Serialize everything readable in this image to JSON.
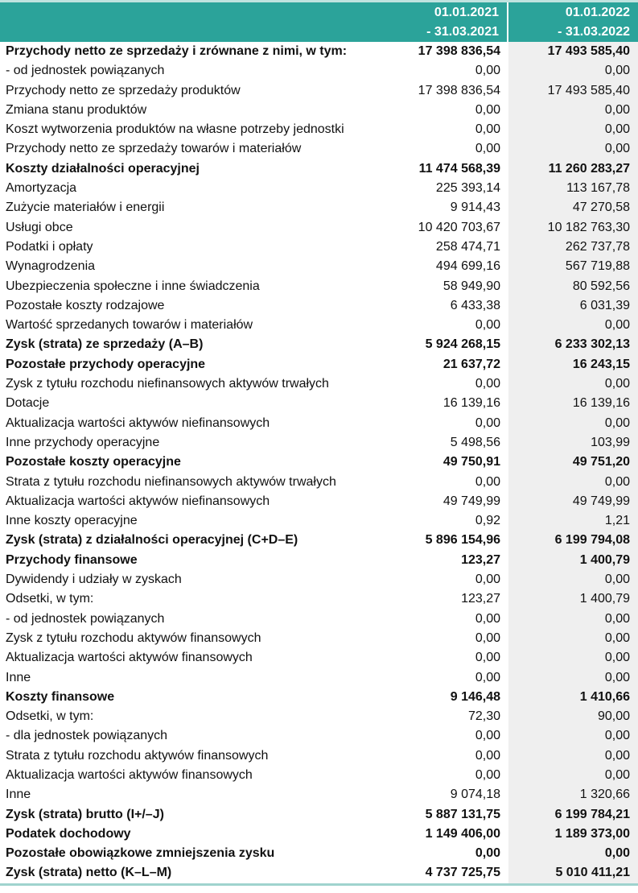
{
  "header": {
    "col1_line1": "01.01.2021",
    "col1_line2": "- 31.03.2021",
    "col2_line1": "01.01.2022",
    "col2_line2": "- 31.03.2022",
    "color": "#2ba39a"
  },
  "rows": [
    {
      "label": "Przychody netto ze sprzedaży i zrównane z nimi, w tym:",
      "v2021": "17 398 836,54",
      "v2022": "17 493 585,40",
      "bold": true
    },
    {
      "label": " - od jednostek powiązanych",
      "v2021": "0,00",
      "v2022": "0,00",
      "bold": false
    },
    {
      "label": "Przychody netto ze sprzedaży produktów",
      "v2021": "17 398 836,54",
      "v2022": "17 493 585,40",
      "bold": false
    },
    {
      "label": "Zmiana stanu produktów",
      "v2021": "0,00",
      "v2022": "0,00",
      "bold": false
    },
    {
      "label": "Koszt wytworzenia produktów na własne potrzeby jednostki",
      "v2021": "0,00",
      "v2022": "0,00",
      "bold": false
    },
    {
      "label": "Przychody netto ze sprzedaży towarów i materiałów",
      "v2021": "0,00",
      "v2022": "0,00",
      "bold": false
    },
    {
      "label": "Koszty działalności operacyjnej",
      "v2021": "11 474 568,39",
      "v2022": "11 260 283,27",
      "bold": true
    },
    {
      "label": "Amortyzacja",
      "v2021": "225 393,14",
      "v2022": "113 167,78",
      "bold": false
    },
    {
      "label": "Zużycie materiałów i energii",
      "v2021": "9 914,43",
      "v2022": "47 270,58",
      "bold": false
    },
    {
      "label": "Usługi obce",
      "v2021": "10 420 703,67",
      "v2022": "10 182 763,30",
      "bold": false
    },
    {
      "label": "Podatki i opłaty",
      "v2021": "258 474,71",
      "v2022": "262 737,78",
      "bold": false
    },
    {
      "label": "Wynagrodzenia",
      "v2021": "494 699,16",
      "v2022": "567 719,88",
      "bold": false
    },
    {
      "label": "Ubezpieczenia społeczne i inne świadczenia",
      "v2021": "58 949,90",
      "v2022": "80 592,56",
      "bold": false
    },
    {
      "label": "Pozostałe koszty rodzajowe",
      "v2021": "6 433,38",
      "v2022": "6 031,39",
      "bold": false
    },
    {
      "label": "Wartość sprzedanych towarów i materiałów",
      "v2021": "0,00",
      "v2022": "0,00",
      "bold": false
    },
    {
      "label": "Zysk (strata) ze sprzedaży (A–B)",
      "v2021": "5 924 268,15",
      "v2022": "6 233 302,13",
      "bold": true
    },
    {
      "label": "Pozostałe przychody operacyjne",
      "v2021": "21 637,72",
      "v2022": "16 243,15",
      "bold": true
    },
    {
      "label": "Zysk z tytułu rozchodu niefinansowych aktywów trwałych",
      "v2021": "0,00",
      "v2022": "0,00",
      "bold": false
    },
    {
      "label": "Dotacje",
      "v2021": "16 139,16",
      "v2022": "16 139,16",
      "bold": false
    },
    {
      "label": "Aktualizacja wartości aktywów niefinansowych",
      "v2021": "0,00",
      "v2022": "0,00",
      "bold": false
    },
    {
      "label": "Inne przychody operacyjne",
      "v2021": "5 498,56",
      "v2022": "103,99",
      "bold": false
    },
    {
      "label": "Pozostałe koszty operacyjne",
      "v2021": "49 750,91",
      "v2022": "49 751,20",
      "bold": true
    },
    {
      "label": "Strata z tytułu rozchodu niefinansowych aktywów trwałych",
      "v2021": "0,00",
      "v2022": "0,00",
      "bold": false
    },
    {
      "label": "Aktualizacja wartości aktywów niefinansowych",
      "v2021": "49 749,99",
      "v2022": "49 749,99",
      "bold": false
    },
    {
      "label": "Inne koszty operacyjne",
      "v2021": "0,92",
      "v2022": "1,21",
      "bold": false
    },
    {
      "label": "Zysk (strata) z działalności operacyjnej (C+D–E)",
      "v2021": "5 896 154,96",
      "v2022": "6 199 794,08",
      "bold": true
    },
    {
      "label": "Przychody finansowe",
      "v2021": "123,27",
      "v2022": "1 400,79",
      "bold": true
    },
    {
      "label": "Dywidendy i udziały w zyskach",
      "v2021": "0,00",
      "v2022": "0,00",
      "bold": false
    },
    {
      "label": "Odsetki, w tym:",
      "v2021": "123,27",
      "v2022": "1 400,79",
      "bold": false
    },
    {
      "label": " - od jednostek powiązanych",
      "v2021": "0,00",
      "v2022": "0,00",
      "bold": false
    },
    {
      "label": "Zysk z tytułu rozchodu aktywów finansowych",
      "v2021": "0,00",
      "v2022": "0,00",
      "bold": false
    },
    {
      "label": "Aktualizacja wartości aktywów finansowych",
      "v2021": "0,00",
      "v2022": "0,00",
      "bold": false
    },
    {
      "label": "Inne",
      "v2021": "0,00",
      "v2022": "0,00",
      "bold": false
    },
    {
      "label": "Koszty finansowe",
      "v2021": "9 146,48",
      "v2022": "1 410,66",
      "bold": true
    },
    {
      "label": "Odsetki, w tym:",
      "v2021": "72,30",
      "v2022": "90,00",
      "bold": false
    },
    {
      "label": " - dla jednostek powiązanych",
      "v2021": "0,00",
      "v2022": "0,00",
      "bold": false
    },
    {
      "label": "Strata z tytułu rozchodu aktywów finansowych",
      "v2021": "0,00",
      "v2022": "0,00",
      "bold": false
    },
    {
      "label": "Aktualizacja wartości aktywów finansowych",
      "v2021": "0,00",
      "v2022": "0,00",
      "bold": false
    },
    {
      "label": "Inne",
      "v2021": "9 074,18",
      "v2022": "1 320,66",
      "bold": false
    },
    {
      "label": "Zysk (strata) brutto (I+/–J)",
      "v2021": "5 887 131,75",
      "v2022": "6 199 784,21",
      "bold": true
    },
    {
      "label": "Podatek dochodowy",
      "v2021": "1 149 406,00",
      "v2022": "1 189 373,00",
      "bold": true
    },
    {
      "label": "Pozostałe obowiązkowe zmniejszenia zysku",
      "v2021": "0,00",
      "v2022": "0,00",
      "bold": true
    },
    {
      "label": "Zysk (strata) netto (K–L–M)",
      "v2021": "4 737 725,75",
      "v2022": "5 010 411,21",
      "bold": true
    }
  ]
}
